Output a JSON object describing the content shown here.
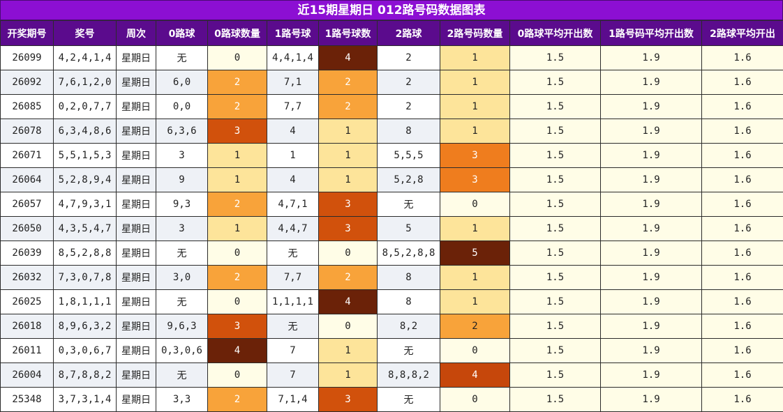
{
  "title": "近15期星期日 012路号码数据图表",
  "headers": [
    "开奖期号",
    "奖号",
    "周次",
    "0路球",
    "0路球数量",
    "1路号球",
    "1路号球数",
    "2路球",
    "2路号码数量",
    "0路球平均开出数",
    "1路号码平均开出数",
    "2路球平均开出"
  ],
  "rows": [
    {
      "issue": "26099",
      "number": "4,2,4,1,4",
      "week": "星期日",
      "r0": "无",
      "r0n": "0",
      "r1": "4,4,1,4",
      "r1n": "4",
      "r2": "2",
      "r2n": "1",
      "a0": "1.5",
      "a1": "1.9",
      "a2": "1.6"
    },
    {
      "issue": "26092",
      "number": "7,6,1,2,0",
      "week": "星期日",
      "r0": "6,0",
      "r0n": "2",
      "r1": "7,1",
      "r1n": "2",
      "r2": "2",
      "r2n": "1",
      "a0": "1.5",
      "a1": "1.9",
      "a2": "1.6"
    },
    {
      "issue": "26085",
      "number": "0,2,0,7,7",
      "week": "星期日",
      "r0": "0,0",
      "r0n": "2",
      "r1": "7,7",
      "r1n": "2",
      "r2": "2",
      "r2n": "1",
      "a0": "1.5",
      "a1": "1.9",
      "a2": "1.6"
    },
    {
      "issue": "26078",
      "number": "6,3,4,8,6",
      "week": "星期日",
      "r0": "6,3,6",
      "r0n": "3",
      "r1": "4",
      "r1n": "1",
      "r2": "8",
      "r2n": "1",
      "a0": "1.5",
      "a1": "1.9",
      "a2": "1.6"
    },
    {
      "issue": "26071",
      "number": "5,5,1,5,3",
      "week": "星期日",
      "r0": "3",
      "r0n": "1",
      "r1": "1",
      "r1n": "1",
      "r2": "5,5,5",
      "r2n": "3",
      "a0": "1.5",
      "a1": "1.9",
      "a2": "1.6"
    },
    {
      "issue": "26064",
      "number": "5,2,8,9,4",
      "week": "星期日",
      "r0": "9",
      "r0n": "1",
      "r1": "4",
      "r1n": "1",
      "r2": "5,2,8",
      "r2n": "3",
      "a0": "1.5",
      "a1": "1.9",
      "a2": "1.6"
    },
    {
      "issue": "26057",
      "number": "4,7,9,3,1",
      "week": "星期日",
      "r0": "9,3",
      "r0n": "2",
      "r1": "4,7,1",
      "r1n": "3",
      "r2": "无",
      "r2n": "0",
      "a0": "1.5",
      "a1": "1.9",
      "a2": "1.6"
    },
    {
      "issue": "26050",
      "number": "4,3,5,4,7",
      "week": "星期日",
      "r0": "3",
      "r0n": "1",
      "r1": "4,4,7",
      "r1n": "3",
      "r2": "5",
      "r2n": "1",
      "a0": "1.5",
      "a1": "1.9",
      "a2": "1.6"
    },
    {
      "issue": "26039",
      "number": "8,5,2,8,8",
      "week": "星期日",
      "r0": "无",
      "r0n": "0",
      "r1": "无",
      "r1n": "0",
      "r2": "8,5,2,8,8",
      "r2n": "5",
      "a0": "1.5",
      "a1": "1.9",
      "a2": "1.6"
    },
    {
      "issue": "26032",
      "number": "7,3,0,7,8",
      "week": "星期日",
      "r0": "3,0",
      "r0n": "2",
      "r1": "7,7",
      "r1n": "2",
      "r2": "8",
      "r2n": "1",
      "a0": "1.5",
      "a1": "1.9",
      "a2": "1.6"
    },
    {
      "issue": "26025",
      "number": "1,8,1,1,1",
      "week": "星期日",
      "r0": "无",
      "r0n": "0",
      "r1": "1,1,1,1",
      "r1n": "4",
      "r2": "8",
      "r2n": "1",
      "a0": "1.5",
      "a1": "1.9",
      "a2": "1.6"
    },
    {
      "issue": "26018",
      "number": "8,9,6,3,2",
      "week": "星期日",
      "r0": "9,6,3",
      "r0n": "3",
      "r1": "无",
      "r1n": "0",
      "r2": "8,2",
      "r2n": "2",
      "a0": "1.5",
      "a1": "1.9",
      "a2": "1.6"
    },
    {
      "issue": "26011",
      "number": "0,3,0,6,7",
      "week": "星期日",
      "r0": "0,3,0,6",
      "r0n": "4",
      "r1": "7",
      "r1n": "1",
      "r2": "无",
      "r2n": "0",
      "a0": "1.5",
      "a1": "1.9",
      "a2": "1.6"
    },
    {
      "issue": "26004",
      "number": "8,7,8,8,2",
      "week": "星期日",
      "r0": "无",
      "r0n": "0",
      "r1": "7",
      "r1n": "1",
      "r2": "8,8,8,2",
      "r2n": "4",
      "a0": "1.5",
      "a1": "1.9",
      "a2": "1.6"
    },
    {
      "issue": "25348",
      "number": "3,7,3,1,4",
      "week": "星期日",
      "r0": "3,3",
      "r0n": "2",
      "r1": "7,1,4",
      "r1n": "3",
      "r2": "无",
      "r2n": "0",
      "a0": "1.5",
      "a1": "1.9",
      "a2": "1.6"
    }
  ]
}
